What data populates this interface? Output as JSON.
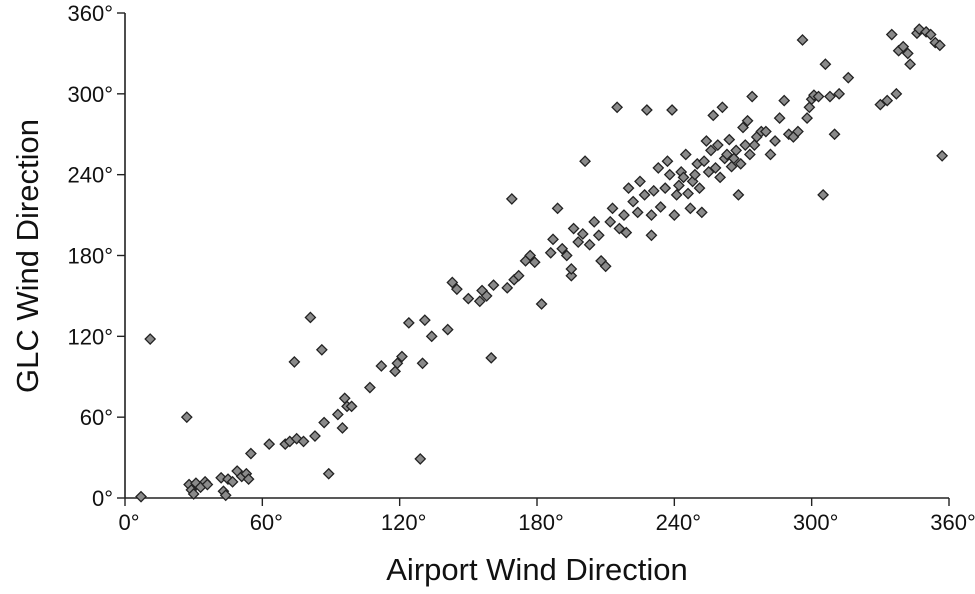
{
  "chart_data": {
    "type": "scatter",
    "title": "",
    "xlabel": "Airport Wind Direction",
    "ylabel": "GLC Wind Direction",
    "xlim": [
      0,
      360
    ],
    "ylim": [
      0,
      360
    ],
    "xticks": [
      0,
      60,
      120,
      180,
      240,
      300,
      360
    ],
    "yticks": [
      0,
      60,
      120,
      180,
      240,
      300,
      360
    ],
    "xtick_labels": [
      "0°",
      "60°",
      "120°",
      "180°",
      "240°",
      "300°",
      "360°"
    ],
    "ytick_labels": [
      "0°",
      "60°",
      "120°",
      "180°",
      "240°",
      "300°",
      "360°"
    ],
    "grid": false,
    "marker": "diamond",
    "marker_color": "#8a8a8a",
    "series": [
      {
        "points": [
          [
            7,
            1
          ],
          [
            11,
            118
          ],
          [
            27,
            60
          ],
          [
            28,
            10
          ],
          [
            29,
            6
          ],
          [
            30,
            3
          ],
          [
            31,
            11
          ],
          [
            33,
            8
          ],
          [
            35,
            12
          ],
          [
            36,
            10
          ],
          [
            42,
            15
          ],
          [
            43,
            5
          ],
          [
            44,
            2
          ],
          [
            45,
            14
          ],
          [
            47,
            12
          ],
          [
            49,
            20
          ],
          [
            51,
            16
          ],
          [
            53,
            18
          ],
          [
            54,
            14
          ],
          [
            55,
            33
          ],
          [
            63,
            40
          ],
          [
            70,
            40
          ],
          [
            72,
            42
          ],
          [
            74,
            101
          ],
          [
            75,
            44
          ],
          [
            78,
            42
          ],
          [
            81,
            134
          ],
          [
            83,
            46
          ],
          [
            86,
            110
          ],
          [
            87,
            56
          ],
          [
            89,
            18
          ],
          [
            93,
            62
          ],
          [
            95,
            52
          ],
          [
            96,
            74
          ],
          [
            97,
            68
          ],
          [
            99,
            68
          ],
          [
            107,
            82
          ],
          [
            112,
            98
          ],
          [
            118,
            94
          ],
          [
            119,
            100
          ],
          [
            121,
            105
          ],
          [
            124,
            130
          ],
          [
            129,
            29
          ],
          [
            130,
            100
          ],
          [
            131,
            132
          ],
          [
            134,
            120
          ],
          [
            141,
            125
          ],
          [
            143,
            160
          ],
          [
            145,
            155
          ],
          [
            150,
            148
          ],
          [
            155,
            146
          ],
          [
            156,
            154
          ],
          [
            158,
            150
          ],
          [
            160,
            104
          ],
          [
            161,
            158
          ],
          [
            167,
            156
          ],
          [
            169,
            222
          ],
          [
            170,
            162
          ],
          [
            172,
            165
          ],
          [
            175,
            176
          ],
          [
            177,
            180
          ],
          [
            179,
            175
          ],
          [
            182,
            144
          ],
          [
            186,
            182
          ],
          [
            187,
            192
          ],
          [
            189,
            215
          ],
          [
            191,
            185
          ],
          [
            193,
            180
          ],
          [
            195,
            165
          ],
          [
            195,
            170
          ],
          [
            196,
            200
          ],
          [
            198,
            190
          ],
          [
            200,
            196
          ],
          [
            201,
            250
          ],
          [
            203,
            188
          ],
          [
            205,
            205
          ],
          [
            207,
            195
          ],
          [
            208,
            176
          ],
          [
            210,
            172
          ],
          [
            212,
            205
          ],
          [
            213,
            215
          ],
          [
            215,
            290
          ],
          [
            216,
            200
          ],
          [
            218,
            210
          ],
          [
            219,
            197
          ],
          [
            220,
            230
          ],
          [
            222,
            220
          ],
          [
            224,
            212
          ],
          [
            225,
            235
          ],
          [
            227,
            225
          ],
          [
            228,
            288
          ],
          [
            230,
            195
          ],
          [
            230,
            210
          ],
          [
            231,
            228
          ],
          [
            233,
            245
          ],
          [
            234,
            216
          ],
          [
            236,
            230
          ],
          [
            237,
            250
          ],
          [
            238,
            240
          ],
          [
            239,
            288
          ],
          [
            240,
            210
          ],
          [
            241,
            225
          ],
          [
            242,
            232
          ],
          [
            243,
            242
          ],
          [
            244,
            238
          ],
          [
            245,
            255
          ],
          [
            246,
            226
          ],
          [
            247,
            215
          ],
          [
            248,
            235
          ],
          [
            249,
            240
          ],
          [
            250,
            248
          ],
          [
            251,
            230
          ],
          [
            252,
            212
          ],
          [
            253,
            250
          ],
          [
            254,
            265
          ],
          [
            255,
            242
          ],
          [
            256,
            258
          ],
          [
            257,
            284
          ],
          [
            258,
            245
          ],
          [
            259,
            262
          ],
          [
            260,
            238
          ],
          [
            261,
            290
          ],
          [
            262,
            252
          ],
          [
            263,
            255
          ],
          [
            264,
            266
          ],
          [
            265,
            246
          ],
          [
            266,
            252
          ],
          [
            267,
            258
          ],
          [
            268,
            225
          ],
          [
            269,
            248
          ],
          [
            270,
            275
          ],
          [
            271,
            262
          ],
          [
            272,
            280
          ],
          [
            273,
            255
          ],
          [
            274,
            298
          ],
          [
            275,
            262
          ],
          [
            276,
            268
          ],
          [
            278,
            272
          ],
          [
            280,
            272
          ],
          [
            282,
            255
          ],
          [
            284,
            265
          ],
          [
            286,
            282
          ],
          [
            288,
            295
          ],
          [
            290,
            270
          ],
          [
            292,
            268
          ],
          [
            294,
            272
          ],
          [
            296,
            340
          ],
          [
            298,
            282
          ],
          [
            299,
            290
          ],
          [
            300,
            296
          ],
          [
            301,
            299
          ],
          [
            303,
            298
          ],
          [
            305,
            225
          ],
          [
            306,
            322
          ],
          [
            308,
            298
          ],
          [
            310,
            270
          ],
          [
            312,
            300
          ],
          [
            316,
            312
          ],
          [
            330,
            292
          ],
          [
            333,
            295
          ],
          [
            335,
            344
          ],
          [
            337,
            300
          ],
          [
            338,
            332
          ],
          [
            340,
            335
          ],
          [
            342,
            330
          ],
          [
            343,
            322
          ],
          [
            346,
            345
          ],
          [
            347,
            348
          ],
          [
            350,
            346
          ],
          [
            352,
            344
          ],
          [
            354,
            338
          ],
          [
            356,
            336
          ],
          [
            357,
            254
          ]
        ]
      }
    ]
  }
}
